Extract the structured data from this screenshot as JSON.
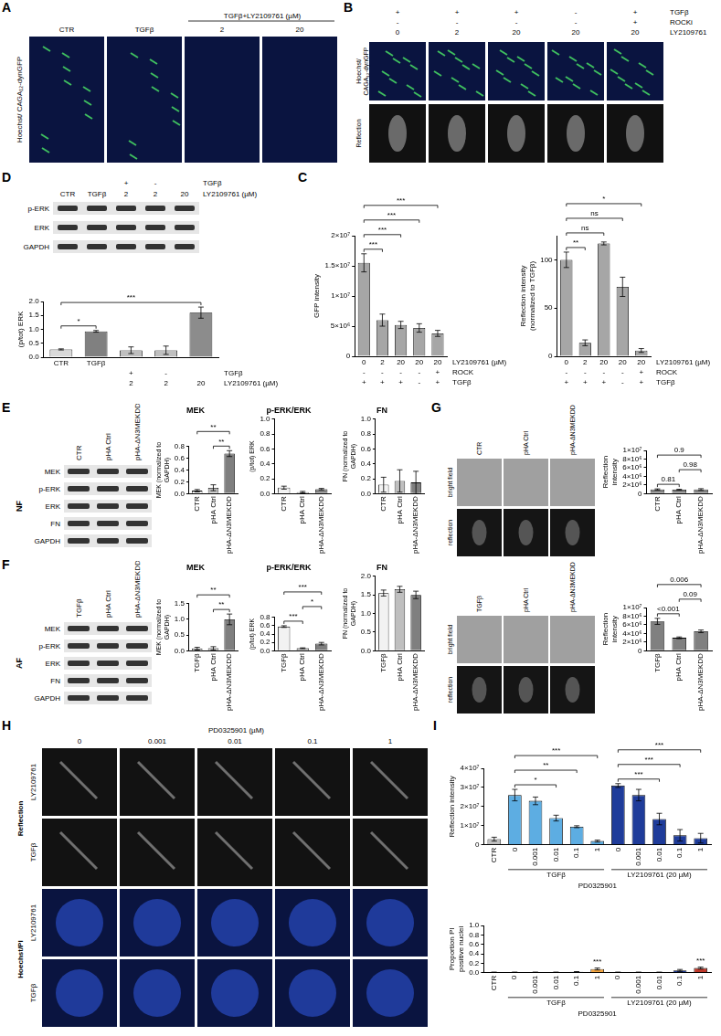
{
  "panels": {
    "A": {
      "letter": "A",
      "row_label": "Hoechst/ CAGA₁₂-dynGFP",
      "columns": [
        "CTR",
        "TGFβ",
        "2",
        "20"
      ],
      "group_label": "TGFβ+LY2109761 (µM)"
    },
    "B": {
      "letter": "B",
      "header_rows": [
        {
          "name": "TGFβ",
          "cells": [
            "+",
            "+",
            "+",
            "-",
            "+"
          ]
        },
        {
          "name": "ROCKi",
          "cells": [
            "-",
            "-",
            "-",
            "-",
            "+"
          ]
        },
        {
          "name": "LY2109761",
          "cells": [
            "0",
            "2",
            "20",
            "20",
            "20"
          ]
        }
      ],
      "row_labels": [
        "Hoechst/ CAGA₁₂-dynGFP",
        "Reflection"
      ]
    },
    "C": {
      "letter": "C"
    },
    "D": {
      "letter": "D",
      "header_rows": [
        {
          "name": "TGFβ",
          "cells": [
            null,
            null,
            "+",
            "-",
            null
          ]
        },
        {
          "name": "LY2109761 (µM)",
          "cells": [
            null,
            null,
            "2",
            "2",
            "20"
          ]
        }
      ],
      "lanes": [
        "CTR",
        "TGFβ",
        null,
        null,
        null
      ],
      "bands": [
        "p-ERK",
        "ERK",
        "GAPDH"
      ]
    },
    "E": {
      "letter": "E",
      "side_label": "NF",
      "lanes": [
        "CTR",
        "pHA Ctrl",
        "pHA-ΔN3MEKDD"
      ],
      "bands": [
        "MEK",
        "p-ERK",
        "ERK",
        "FN",
        "GAPDH"
      ]
    },
    "F": {
      "letter": "F",
      "side_label": "AF",
      "lanes": [
        "TGFβ",
        "pHA Ctrl",
        "pHA-ΔN3MEKDD"
      ],
      "bands": [
        "MEK",
        "p-ERK",
        "ERK",
        "FN",
        "GAPDH"
      ]
    },
    "G": {
      "letter": "G",
      "image_sets": [
        {
          "columns": [
            "CTR",
            "pHA Ctrl",
            "pHA-ΔN3MEKDD"
          ],
          "row_labels": [
            "bright field",
            "reflection"
          ]
        },
        {
          "columns": [
            "TGFβ",
            "pHA Ctrl",
            "pHA-ΔN3MEKDD"
          ],
          "row_labels": [
            "bright field",
            "reflection"
          ]
        }
      ]
    },
    "H": {
      "letter": "H",
      "column_title": "PD0325901 (µM)",
      "columns": [
        "0",
        "0.001",
        "0.01",
        "0.1",
        "1"
      ],
      "sections": [
        {
          "name": "Reflection",
          "rows": [
            "LY2109761",
            "TGFβ"
          ]
        },
        {
          "name": "Hoechst/PI",
          "rows": [
            "LY2109761",
            "TGFβ"
          ]
        }
      ]
    },
    "I": {
      "letter": "I"
    }
  },
  "chart_data": [
    {
      "type": "bar",
      "y_label": "GFP intensity",
      "categories": [
        "0",
        "2",
        "20",
        "20",
        "20"
      ],
      "category_name": "LY2109761 (µM)",
      "category_rows": [
        {
          "name": "ROCK",
          "cells": [
            "-",
            "-",
            "-",
            "-",
            "+"
          ]
        },
        {
          "name": "TGFβ",
          "cells": [
            "+",
            "+",
            "+",
            "-",
            "+"
          ]
        }
      ],
      "values": [
        15500000,
        6000000,
        5200000,
        4700000,
        3800000
      ],
      "errors": [
        1500000,
        1000000,
        600000,
        700000,
        500000
      ],
      "color": "#a6a6a6",
      "ylim": [
        0,
        20000000
      ],
      "yticks": [
        0,
        {
          "value": 5000000,
          "label": "5×10⁶"
        },
        {
          "value": 10000000,
          "label": "1×10⁷"
        },
        {
          "value": 15000000,
          "label": "1.5×10⁷"
        },
        {
          "value": 20000000,
          "label": "2×10⁷"
        }
      ],
      "grid": false,
      "brackets": [
        {
          "from": 0,
          "to": 1,
          "label": "***"
        },
        {
          "from": 0,
          "to": 2,
          "label": "***"
        },
        {
          "from": 0,
          "to": 3,
          "label": "***"
        },
        {
          "from": 0,
          "to": 4,
          "label": "***"
        }
      ]
    },
    {
      "type": "bar",
      "y_label": "Reflection intensity (normalized to TGFβ)",
      "categories": [
        "0",
        "2",
        "20",
        "20",
        "20"
      ],
      "category_name": "LY2109761 (µM)",
      "category_rows": [
        {
          "name": "ROCK",
          "cells": [
            "-",
            "-",
            "-",
            "-",
            "+"
          ]
        },
        {
          "name": "TGFβ",
          "cells": [
            "+",
            "+",
            "+",
            "-",
            "+"
          ]
        }
      ],
      "values": [
        100,
        14,
        117,
        72,
        6
      ],
      "errors": [
        8,
        3,
        1.5,
        10,
        2
      ],
      "color": "#a6a6a6",
      "ylim": [
        0,
        125
      ],
      "yticks": [
        0,
        50,
        100
      ],
      "grid": false,
      "brackets": [
        {
          "from": 0,
          "to": 1,
          "label": "**"
        },
        {
          "from": 0,
          "to": 2,
          "label": "ns"
        },
        {
          "from": 0,
          "to": 3,
          "label": "ns"
        },
        {
          "from": 0,
          "to": 4,
          "label": "*"
        }
      ]
    },
    {
      "type": "bar",
      "y_label": "(p/tot) ERK",
      "categories": [
        "CTR",
        "TGFβ",
        null,
        null,
        null
      ],
      "category_rows": [
        {
          "name": "TGFβ",
          "cells": [
            null,
            null,
            "+",
            "-",
            null
          ]
        },
        {
          "name": "LY2109761 (µM)",
          "cells": [
            null,
            null,
            "2",
            "2",
            "20"
          ]
        }
      ],
      "values": [
        0.28,
        0.93,
        0.25,
        0.25,
        1.6
      ],
      "errors": [
        0.02,
        0.03,
        0.12,
        0.15,
        0.2
      ],
      "colors": [
        "#d9d9d9",
        "#808080",
        "#bfbfbf",
        "#bfbfbf",
        "#8c8c8c"
      ],
      "ylim": [
        0,
        2
      ],
      "yticks": [
        {
          "value": 0,
          "label": "0.0"
        },
        0.5,
        {
          "value": 1,
          "label": "1.0"
        },
        1.5,
        {
          "value": 2,
          "label": "2.0"
        }
      ],
      "grid": false,
      "brackets": [
        {
          "from": 0,
          "to": 1,
          "label": "*"
        },
        {
          "from": 0,
          "to": 4,
          "label": "***"
        }
      ]
    },
    {
      "type": "bar",
      "title": "MEK",
      "y_label": "MEK (normalized to GAPDH)",
      "categories": [
        "CTR",
        "pHA Ctrl",
        "pHA-ΔN3MEKDD"
      ],
      "values": [
        0.05,
        0.1,
        0.68
      ],
      "errors": [
        0.02,
        0.05,
        0.05
      ],
      "colors": [
        "#f2f2f2",
        "#bfbfbf",
        "#7f7f7f"
      ],
      "ylim": [
        0,
        0.8
      ],
      "yticks": [
        {
          "value": 0,
          "label": "0.0"
        },
        0.2,
        0.4,
        0.6,
        0.8
      ],
      "grid": false,
      "brackets": [
        {
          "from": 1,
          "to": 2,
          "label": "**"
        },
        {
          "from": 0,
          "to": 2,
          "label": "**"
        }
      ]
    },
    {
      "type": "bar",
      "title": "p-ERK/ERK",
      "y_label": "(p/tot) ERK",
      "categories": [
        "CTR",
        "pHA Ctrl",
        "pHA-ΔN3MEKDD"
      ],
      "values": [
        0.08,
        0.02,
        0.06
      ],
      "errors": [
        0.02,
        0.01,
        0.01
      ],
      "colors": [
        "#f2f2f2",
        "#bfbfbf",
        "#7f7f7f"
      ],
      "ylim": [
        0,
        1
      ],
      "yticks": [
        {
          "value": 0,
          "label": "0.0"
        },
        0.2,
        0.4,
        0.6,
        0.8,
        {
          "value": 1,
          "label": "1.0"
        }
      ],
      "grid": false
    },
    {
      "type": "bar",
      "title": "FN",
      "y_label": "FN (normalized to GAPDH)",
      "categories": [
        "CTR",
        "pHA Ctrl",
        "pHA-ΔN3MEKDD"
      ],
      "values": [
        0.12,
        0.17,
        0.15
      ],
      "errors": [
        0.1,
        0.15,
        0.15
      ],
      "colors": [
        "#f2f2f2",
        "#bfbfbf",
        "#7f7f7f"
      ],
      "ylim": [
        0,
        1
      ],
      "yticks": [
        {
          "value": 0,
          "label": "0.0"
        },
        0.2,
        0.4,
        0.6,
        0.8,
        {
          "value": 1,
          "label": "1.0"
        }
      ],
      "grid": false
    },
    {
      "type": "bar",
      "title": "MEK",
      "y_label": "MEK (normalized to GAPDH)",
      "categories": [
        "TGFβ",
        "pHA Ctrl",
        "pHA-ΔN3MEKDD"
      ],
      "values": [
        0.07,
        0.08,
        1.0
      ],
      "errors": [
        0.04,
        0.05,
        0.17
      ],
      "colors": [
        "#f2f2f2",
        "#bfbfbf",
        "#7f7f7f"
      ],
      "ylim": [
        0,
        1.5
      ],
      "yticks": [
        {
          "value": 0,
          "label": "0.0"
        },
        0.5,
        {
          "value": 1,
          "label": "1.0"
        },
        1.5
      ],
      "grid": false,
      "brackets": [
        {
          "from": 1,
          "to": 2,
          "label": "**"
        },
        {
          "from": 0,
          "to": 2,
          "label": "**"
        }
      ]
    },
    {
      "type": "bar",
      "title": "p-ERK/ERK",
      "y_label": "(p/tot) ERK",
      "categories": [
        "TGFβ",
        "pHA Ctrl",
        "pHA-ΔN3MEKDD"
      ],
      "values": [
        0.58,
        0.06,
        0.17
      ],
      "errors": [
        0.02,
        0.01,
        0.03
      ],
      "colors": [
        "#f2f2f2",
        "#bfbfbf",
        "#7f7f7f"
      ],
      "ylim": [
        0,
        0.8
      ],
      "yticks": [
        {
          "value": 0,
          "label": "0.0"
        },
        0.2,
        0.4,
        0.6,
        0.8
      ],
      "grid": false,
      "brackets": [
        {
          "from": 0,
          "to": 1,
          "label": "***"
        },
        {
          "from": 1,
          "to": 2,
          "label": "*"
        },
        {
          "from": 0,
          "to": 2,
          "label": "***"
        }
      ]
    },
    {
      "type": "bar",
      "title": "FN",
      "y_label": "FN (normalized to GAPDH)",
      "categories": [
        "TGFβ",
        "pHA Ctrl",
        "pHA-ΔN3MEKDD"
      ],
      "values": [
        1.55,
        1.65,
        1.5
      ],
      "errors": [
        0.08,
        0.08,
        0.1
      ],
      "colors": [
        "#f2f2f2",
        "#bfbfbf",
        "#7f7f7f"
      ],
      "ylim": [
        0,
        2
      ],
      "yticks": [
        {
          "value": 0,
          "label": "0.0"
        },
        0.5,
        {
          "value": 1,
          "label": "1.0"
        },
        1.5,
        {
          "value": 2,
          "label": "2.0"
        }
      ],
      "grid": false
    },
    {
      "type": "bar",
      "y_label": "Reflection intensity",
      "categories": [
        "CTR",
        "pHA Ctrl",
        "pHA-ΔN3MEKDD"
      ],
      "values": [
        950000,
        900000,
        950000
      ],
      "errors": [
        150000,
        100000,
        200000
      ],
      "color": "#808080",
      "ylim": [
        0,
        10000000
      ],
      "yticks": [
        0,
        {
          "value": 2000000,
          "label": "2×10⁶"
        },
        {
          "value": 4000000,
          "label": "4×10⁶"
        },
        {
          "value": 6000000,
          "label": "6×10⁶"
        },
        {
          "value": 8000000,
          "label": "8×10⁶"
        },
        {
          "value": 10000000,
          "label": "1×10⁷"
        }
      ],
      "grid": false,
      "brackets": [
        {
          "from": 0,
          "to": 1,
          "label": "0.81"
        },
        {
          "from": 1,
          "to": 2,
          "label": "0.98"
        },
        {
          "from": 0,
          "to": 2,
          "label": "0.9"
        }
      ]
    },
    {
      "type": "bar",
      "y_label": "Reflection intensity",
      "categories": [
        "TGFβ",
        "pHA Ctrl",
        "pHA-ΔN3MEKDD"
      ],
      "values": [
        6800000,
        3000000,
        4500000
      ],
      "errors": [
        700000,
        200000,
        300000
      ],
      "color": "#808080",
      "ylim": [
        0,
        10000000
      ],
      "yticks": [
        0,
        {
          "value": 2000000,
          "label": "2×10⁶"
        },
        {
          "value": 4000000,
          "label": "4×10⁶"
        },
        {
          "value": 6000000,
          "label": "6×10⁶"
        },
        {
          "value": 8000000,
          "label": "8×10⁶"
        },
        {
          "value": 10000000,
          "label": "1×10⁷"
        }
      ],
      "grid": false,
      "brackets": [
        {
          "from": 0,
          "to": 1,
          "label": "<0.001"
        },
        {
          "from": 1,
          "to": 2,
          "label": "0.09"
        },
        {
          "from": 0,
          "to": 2,
          "label": "0.006"
        }
      ]
    },
    {
      "type": "bar",
      "y_label": "Reflection intensity",
      "categories": [
        "CTR",
        "0",
        "0.001",
        "0.01",
        "0.1",
        "1",
        "0",
        "0.001",
        "0.01",
        "0.1",
        "1"
      ],
      "groups": [
        {
          "label": "TGFβ",
          "from": 1,
          "to": 5
        },
        {
          "label": "LY2109761 (20 µM)",
          "from": 6,
          "to": 10
        }
      ],
      "x_label": "PD0325901",
      "values": [
        3000000,
        26000000,
        23000000,
        14000000,
        9500000,
        2000000,
        31000000,
        26000000,
        13500000,
        5000000,
        3500000
      ],
      "errors": [
        1000000,
        3000000,
        2000000,
        1500000,
        500000,
        500000,
        1000000,
        3000000,
        3000000,
        3000000,
        2500000
      ],
      "colors": [
        "#bfbfbf",
        "#5dade2",
        "#5dade2",
        "#5dade2",
        "#5dade2",
        "#5dade2",
        "#1f3c9a",
        "#1f3c9a",
        "#1f3c9a",
        "#1f3c9a",
        "#1f3c9a"
      ],
      "ylim": [
        0,
        40000000
      ],
      "yticks": [
        0,
        {
          "value": 10000000,
          "label": "1×10⁷"
        },
        {
          "value": 20000000,
          "label": "2×10⁷"
        },
        {
          "value": 30000000,
          "label": "3×10⁷"
        },
        {
          "value": 40000000,
          "label": "4×10⁷"
        }
      ],
      "grid": false,
      "brackets": [
        {
          "from": 1,
          "to": 3,
          "label": "*"
        },
        {
          "from": 1,
          "to": 4,
          "label": "**"
        },
        {
          "from": 1,
          "to": 5,
          "label": "***"
        },
        {
          "from": 6,
          "to": 8,
          "label": "***"
        },
        {
          "from": 6,
          "to": 9,
          "label": "***"
        },
        {
          "from": 6,
          "to": 10,
          "label": "***"
        }
      ]
    },
    {
      "type": "bar",
      "y_label": "Proportion PI positive nuclei",
      "categories": [
        "CTR",
        "0",
        "0.001",
        "0.01",
        "0.1",
        "1",
        "0",
        "0.001",
        "0.01",
        "0.1",
        "1"
      ],
      "groups": [
        {
          "label": "TGFβ",
          "from": 1,
          "to": 5
        },
        {
          "label": "LY2109761 (20 µM)",
          "from": 6,
          "to": 10
        }
      ],
      "x_label": "PD0325901",
      "values": [
        0.01,
        0.01,
        0.01,
        0.01,
        0.02,
        0.08,
        0.01,
        0.01,
        0.01,
        0.05,
        0.1
      ],
      "errors": [
        0.005,
        0.005,
        0.005,
        0.005,
        0.005,
        0.02,
        0.005,
        0.005,
        0.005,
        0.02,
        0.02
      ],
      "colors": [
        "#bfbfbf",
        "#5dade2",
        "#5dade2",
        "#5dade2",
        "#5dade2",
        "#f5a742",
        "#1f3c9a",
        "#1f3c9a",
        "#1f3c9a",
        "#1f3c9a",
        "#c0392b"
      ],
      "ylim": [
        0,
        1
      ],
      "yticks": [
        {
          "value": 0,
          "label": "0.0"
        },
        0.2,
        0.4,
        0.6,
        0.8,
        {
          "value": 1,
          "label": "1.0"
        }
      ],
      "grid": false,
      "annotations": [
        {
          "at": 5,
          "label": "***"
        },
        {
          "at": 10,
          "label": "***"
        }
      ]
    }
  ]
}
